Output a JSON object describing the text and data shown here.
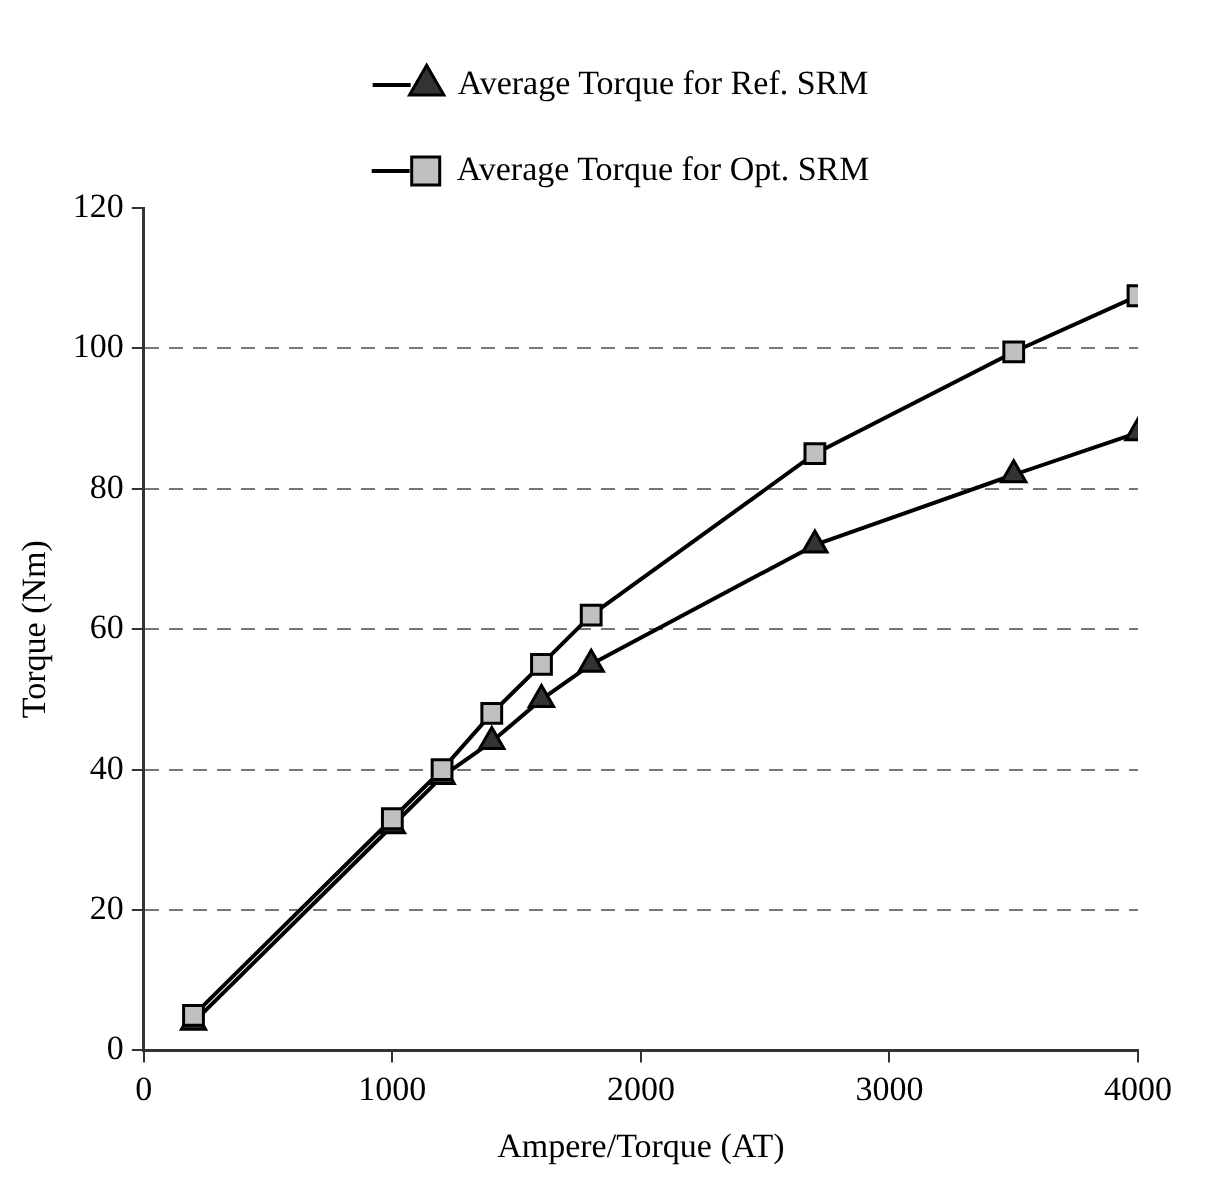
{
  "chart_data": {
    "type": "line",
    "xlabel": "Ampere/Torque (AT)",
    "ylabel": "Torque (Nm)",
    "x": [
      200,
      1000,
      1200,
      1400,
      1600,
      1800,
      2700,
      3500,
      4000
    ],
    "series": [
      {
        "name": "Average Torque for Ref. SRM",
        "color": "#333333",
        "marker": "triangle",
        "values": [
          4,
          32,
          39,
          44,
          50,
          55,
          72,
          82,
          88
        ]
      },
      {
        "name": "Average Torque for Opt. SRM",
        "color": "#c0c0c0",
        "marker": "square",
        "values": [
          5,
          33,
          40,
          48,
          55,
          62,
          85,
          99.5,
          107.5
        ]
      }
    ],
    "xlim": [
      0,
      4000
    ],
    "xticks": [
      0,
      1000,
      2000,
      3000,
      4000
    ],
    "ylim": [
      0,
      120
    ],
    "yticks": [
      0,
      20,
      40,
      60,
      80,
      100,
      120
    ],
    "grid": "y",
    "legend": "top"
  }
}
